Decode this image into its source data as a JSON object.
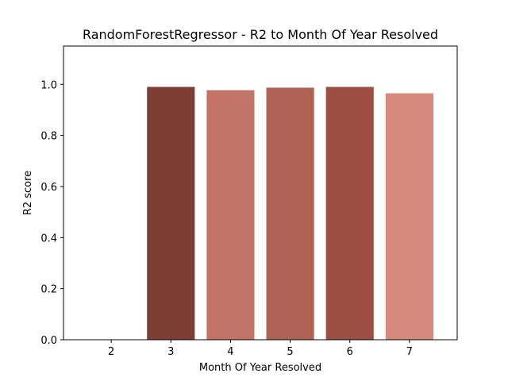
{
  "chart_data": {
    "type": "bar",
    "title": "RandomForestRegressor - R2 to Month Of Year Resolved",
    "xlabel": "Month Of Year Resolved",
    "ylabel": "R2 score",
    "categories": [
      "2",
      "3",
      "4",
      "5",
      "6",
      "7"
    ],
    "values": [
      0,
      0.99,
      0.977,
      0.987,
      0.99,
      0.965
    ],
    "colors": [
      "#ffffff",
      "#7f3e34",
      "#c47466",
      "#b06355",
      "#9d4f43",
      "#d68a7c"
    ],
    "ylim": [
      0,
      1.15
    ],
    "xlim": [
      1.2,
      7.8
    ],
    "yticks": [
      "0.0",
      "0.2",
      "0.4",
      "0.6",
      "0.8",
      "1.0"
    ],
    "grid": false,
    "legend": "none"
  }
}
